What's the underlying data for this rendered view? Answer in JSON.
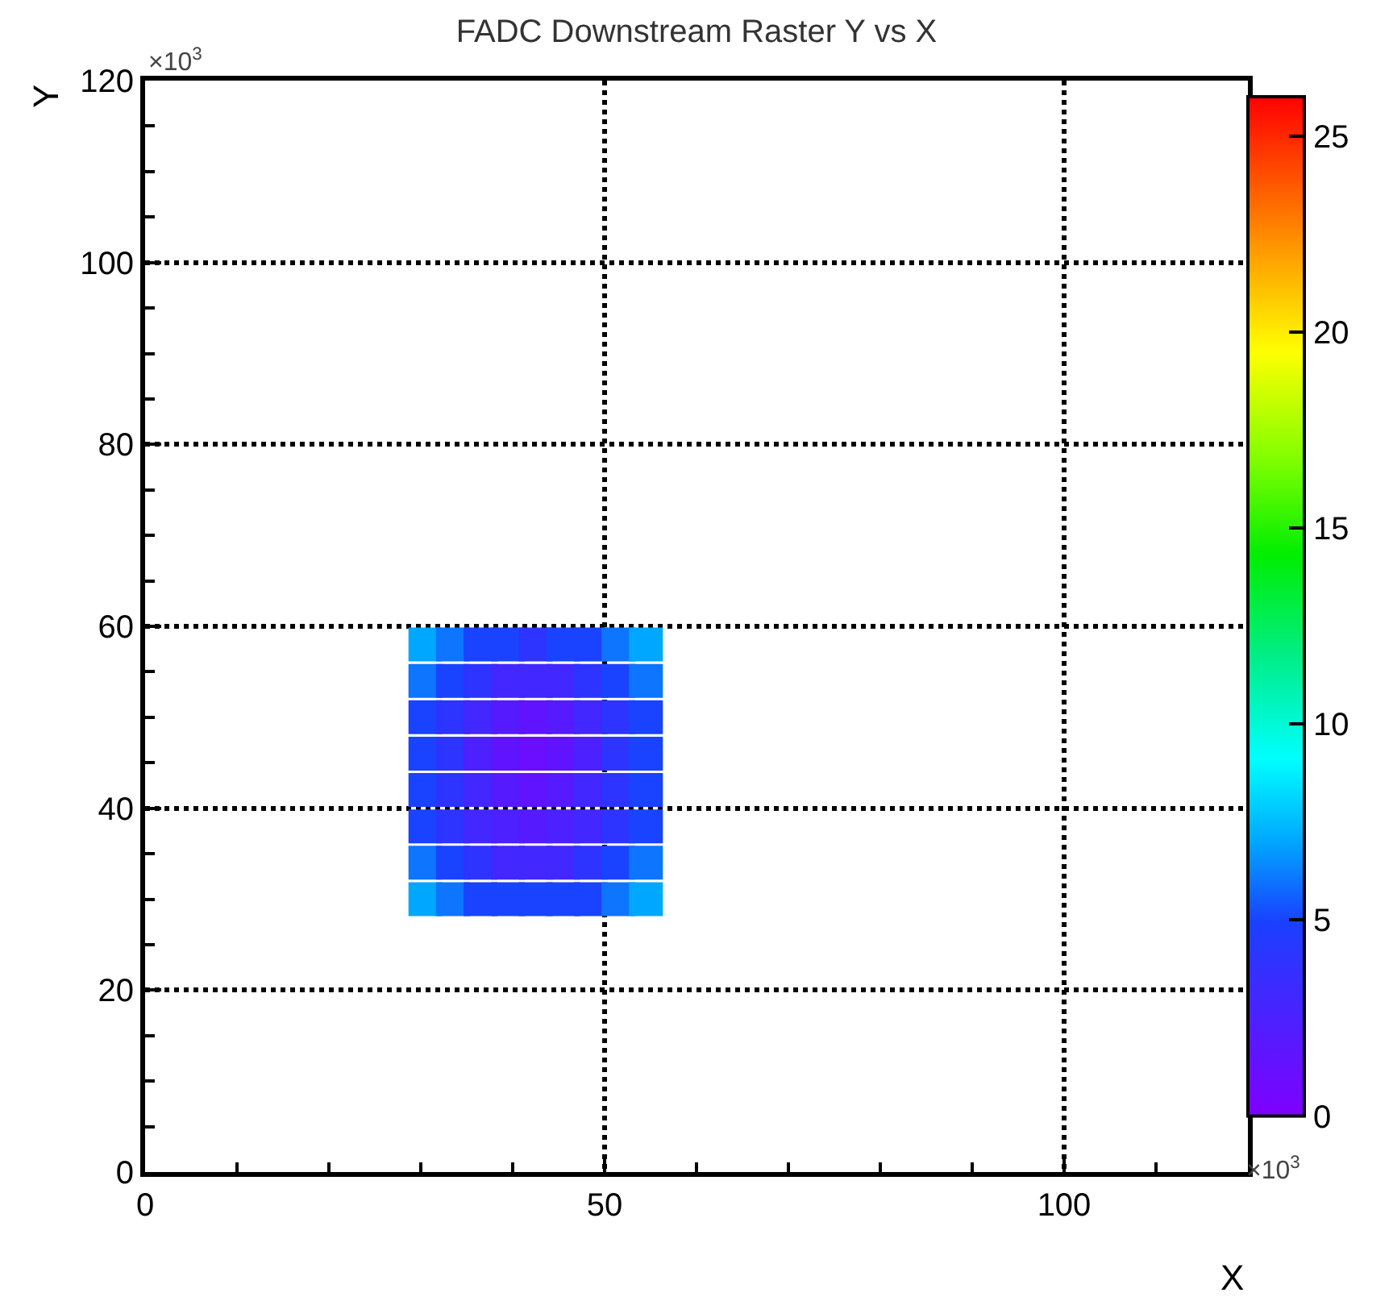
{
  "chart_data": {
    "type": "scatter",
    "title": "FADC Downstream Raster Y vs X",
    "xlabel": "X",
    "ylabel": "Y",
    "annotations": [
      "×10$^{3}$"
    ],
    "clabel": "×10$^{3}$",
    "marker": "square",
    "x": [
      30.5,
      33.5,
      36.5,
      39.5,
      42.5,
      45.5,
      48.5,
      51.5,
      54.5,
      30.5,
      33.5,
      36.5,
      39.5,
      42.5,
      45.5,
      48.5,
      51.5,
      54.5,
      30.5,
      33.5,
      36.5,
      39.5,
      42.5,
      45.5,
      48.5,
      51.5,
      54.5,
      30.5,
      33.5,
      36.5,
      39.5,
      42.5,
      45.5,
      48.5,
      51.5,
      54.5,
      30.5,
      33.5,
      36.5,
      39.5,
      42.5,
      45.5,
      48.5,
      51.5,
      54.5,
      30.5,
      33.5,
      36.5,
      39.5,
      42.5,
      45.5,
      48.5,
      51.5,
      54.5,
      30.5,
      33.5,
      36.5,
      39.5,
      42.5,
      45.5,
      48.5,
      51.5,
      54.5,
      30.5,
      33.5,
      36.5,
      39.5,
      42.5,
      45.5,
      48.5,
      51.5,
      54.5
    ],
    "values": [
      30,
      30,
      30,
      30,
      30,
      30,
      30,
      30,
      30,
      34,
      34,
      34,
      34,
      34,
      34,
      34,
      34,
      34,
      38,
      38,
      38,
      38,
      38,
      38,
      38,
      38,
      38,
      42,
      42,
      42,
      42,
      42,
      42,
      42,
      42,
      42,
      46,
      46,
      46,
      46,
      46,
      46,
      46,
      46,
      46,
      50,
      50,
      50,
      50,
      50,
      50,
      50,
      50,
      50,
      54,
      54,
      54,
      54,
      54,
      54,
      54,
      54,
      54,
      58,
      58,
      58,
      58,
      58,
      58,
      58,
      58,
      58
    ],
    "cvalues": [
      7,
      6,
      5,
      5,
      5,
      5,
      5,
      6,
      7,
      6,
      5,
      4,
      3,
      3,
      3,
      4,
      5,
      6,
      5,
      4,
      3,
      2.5,
      2,
      2.5,
      3,
      4,
      5,
      5,
      4,
      3,
      2,
      1.5,
      2,
      3,
      4,
      5,
      5,
      4,
      2.5,
      1.5,
      1,
      1.5,
      2.5,
      4,
      5,
      5,
      4,
      3,
      2,
      1.5,
      2,
      3,
      4,
      5,
      6,
      5,
      4,
      3,
      3,
      3,
      4,
      5,
      6,
      7,
      6,
      5,
      5,
      4,
      5,
      5,
      6,
      7
    ],
    "xlim": [
      0,
      120
    ],
    "xticks": [
      0,
      50,
      100
    ],
    "ylim": [
      0,
      120
    ],
    "yticks": [
      0,
      20,
      40,
      60,
      80,
      100,
      120
    ],
    "clim": [
      0,
      26
    ],
    "cticks": [
      0,
      5,
      10,
      15,
      20,
      25
    ],
    "grid": true
  }
}
